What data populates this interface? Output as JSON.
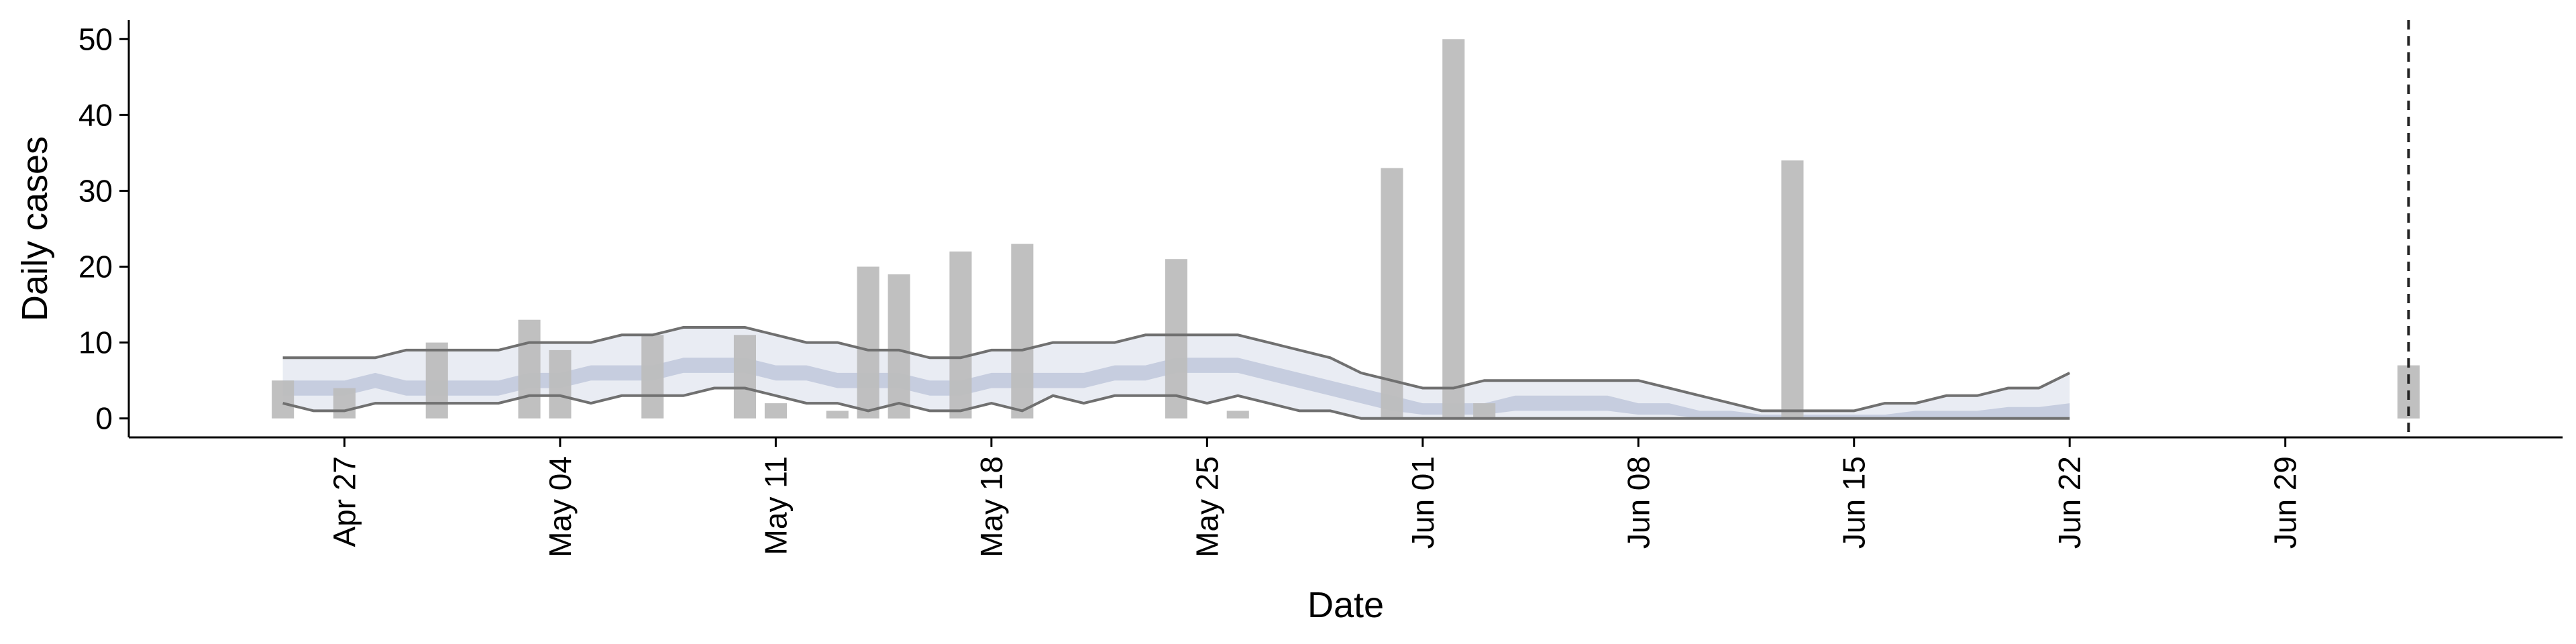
{
  "chart_data": {
    "type": "bar",
    "xlabel": "Date",
    "ylabel": "Daily cases",
    "ylim": [
      -2.5,
      52.5
    ],
    "xlim": [
      "2020-04-20",
      "2020-07-08"
    ],
    "y_ticks": [
      0,
      10,
      20,
      30,
      40,
      50
    ],
    "x_ticks": [
      {
        "date": "2020-04-27",
        "label": "Apr 27"
      },
      {
        "date": "2020-05-04",
        "label": "May 04"
      },
      {
        "date": "2020-05-11",
        "label": "May 11"
      },
      {
        "date": "2020-05-18",
        "label": "May 18"
      },
      {
        "date": "2020-05-25",
        "label": "May 25"
      },
      {
        "date": "2020-06-01",
        "label": "Jun 01"
      },
      {
        "date": "2020-06-08",
        "label": "Jun 08"
      },
      {
        "date": "2020-06-15",
        "label": "Jun 15"
      },
      {
        "date": "2020-06-22",
        "label": "Jun 22"
      },
      {
        "date": "2020-06-29",
        "label": "Jun 29"
      }
    ],
    "vline": "2020-07-03",
    "colors": {
      "bars": "#bdbdbd",
      "band_outer": "#e9ecf3",
      "band_inner": "#c6cddf",
      "interval_line": "#707070",
      "vline": "#222222"
    },
    "bars": [
      {
        "date": "2020-04-25",
        "value": 5
      },
      {
        "date": "2020-04-27",
        "value": 4
      },
      {
        "date": "2020-04-30",
        "value": 10
      },
      {
        "date": "2020-05-03",
        "value": 13
      },
      {
        "date": "2020-05-04",
        "value": 9
      },
      {
        "date": "2020-05-07",
        "value": 11
      },
      {
        "date": "2020-05-10",
        "value": 11
      },
      {
        "date": "2020-05-11",
        "value": 2
      },
      {
        "date": "2020-05-13",
        "value": 1
      },
      {
        "date": "2020-05-14",
        "value": 20
      },
      {
        "date": "2020-05-15",
        "value": 19
      },
      {
        "date": "2020-05-17",
        "value": 22
      },
      {
        "date": "2020-05-19",
        "value": 23
      },
      {
        "date": "2020-05-24",
        "value": 21
      },
      {
        "date": "2020-05-26",
        "value": 1
      },
      {
        "date": "2020-05-31",
        "value": 33
      },
      {
        "date": "2020-06-02",
        "value": 50
      },
      {
        "date": "2020-06-03",
        "value": 2
      },
      {
        "date": "2020-06-13",
        "value": 34
      },
      {
        "date": "2020-07-03",
        "value": 7
      }
    ],
    "estimate_dates": [
      "2020-04-25",
      "2020-04-26",
      "2020-04-27",
      "2020-04-28",
      "2020-04-29",
      "2020-04-30",
      "2020-05-01",
      "2020-05-02",
      "2020-05-03",
      "2020-05-04",
      "2020-05-05",
      "2020-05-06",
      "2020-05-07",
      "2020-05-08",
      "2020-05-09",
      "2020-05-10",
      "2020-05-11",
      "2020-05-12",
      "2020-05-13",
      "2020-05-14",
      "2020-05-15",
      "2020-05-16",
      "2020-05-17",
      "2020-05-18",
      "2020-05-19",
      "2020-05-20",
      "2020-05-21",
      "2020-05-22",
      "2020-05-23",
      "2020-05-24",
      "2020-05-25",
      "2020-05-26",
      "2020-05-27",
      "2020-05-28",
      "2020-05-29",
      "2020-05-30",
      "2020-05-31",
      "2020-06-01",
      "2020-06-02",
      "2020-06-03",
      "2020-06-04",
      "2020-06-05",
      "2020-06-06",
      "2020-06-07",
      "2020-06-08",
      "2020-06-09",
      "2020-06-10",
      "2020-06-11",
      "2020-06-12",
      "2020-06-13",
      "2020-06-14",
      "2020-06-15",
      "2020-06-16",
      "2020-06-17",
      "2020-06-18",
      "2020-06-19",
      "2020-06-20",
      "2020-06-21",
      "2020-06-22"
    ],
    "outer_upper": [
      8,
      8,
      8,
      8,
      9,
      9,
      9,
      9,
      10,
      10,
      10,
      11,
      11,
      12,
      12,
      12,
      11,
      10,
      10,
      9,
      9,
      8,
      8,
      9,
      9,
      10,
      10,
      10,
      11,
      11,
      11,
      11,
      10,
      9,
      8,
      6,
      5,
      4,
      4,
      5,
      5,
      5,
      5,
      5,
      5,
      4,
      3,
      2,
      1,
      1,
      1,
      1,
      2,
      2,
      3,
      3,
      4,
      4,
      6
    ],
    "inner_upper": [
      5,
      5,
      5,
      6,
      5,
      5,
      5,
      5,
      6,
      6,
      7,
      7,
      7,
      8,
      8,
      8,
      7,
      7,
      6,
      6,
      6,
      5,
      5,
      6,
      6,
      6,
      6,
      7,
      7,
      8,
      8,
      8,
      7,
      6,
      5,
      4,
      3,
      2,
      2,
      2,
      3,
      3,
      3,
      3,
      2,
      2,
      1,
      1,
      0.5,
      0.5,
      0.5,
      0.5,
      0.5,
      1,
      1,
      1,
      1.5,
      1.5,
      2
    ],
    "inner_lower": [
      3,
      3,
      3,
      4,
      3,
      3,
      3,
      3,
      4,
      4,
      5,
      5,
      5,
      6,
      6,
      6,
      5,
      5,
      4,
      4,
      4,
      3,
      3,
      4,
      4,
      4,
      4,
      5,
      5,
      6,
      6,
      6,
      5,
      4,
      3,
      2,
      1,
      0.5,
      0.5,
      0.5,
      1,
      1,
      1,
      1,
      0.5,
      0.5,
      0,
      0,
      0,
      0,
      0,
      0,
      0,
      0,
      0,
      0,
      0,
      0,
      0
    ],
    "outer_lower": [
      2,
      1,
      1,
      2,
      2,
      2,
      2,
      2,
      3,
      3,
      2,
      3,
      3,
      3,
      4,
      4,
      3,
      2,
      2,
      1,
      2,
      1,
      1,
      2,
      1,
      3,
      2,
      3,
      3,
      3,
      2,
      3,
      2,
      1,
      1,
      0,
      0,
      0,
      0,
      0,
      0,
      0,
      0,
      0,
      0,
      0,
      0,
      0,
      0,
      0,
      0,
      0,
      0,
      0,
      0,
      0,
      0,
      0,
      0
    ]
  }
}
